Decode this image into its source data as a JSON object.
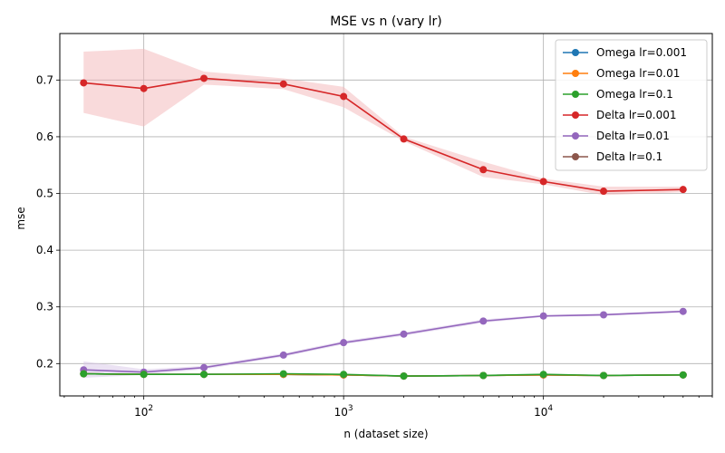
{
  "chart_data": {
    "type": "line",
    "title": "MSE vs n (vary lr)",
    "xlabel": "n (dataset size)",
    "ylabel": "mse",
    "xscale": "log",
    "xlim": [
      38,
      70000
    ],
    "ylim": [
      0.143,
      0.782
    ],
    "x": [
      50,
      100,
      200,
      500,
      1000,
      2000,
      5000,
      10000,
      20000,
      50000
    ],
    "x_ticks": [
      {
        "value": 100,
        "base": "10",
        "exp": "2"
      },
      {
        "value": 1000,
        "base": "10",
        "exp": "3"
      },
      {
        "value": 10000,
        "base": "10",
        "exp": "4"
      }
    ],
    "y_ticks": [
      {
        "value": 0.2,
        "label": "0.2"
      },
      {
        "value": 0.3,
        "label": "0.3"
      },
      {
        "value": 0.4,
        "label": "0.4"
      },
      {
        "value": 0.5,
        "label": "0.5"
      },
      {
        "value": 0.6,
        "label": "0.6"
      },
      {
        "value": 0.7,
        "label": "0.7"
      }
    ],
    "grid": true,
    "legend_position": "top-right",
    "series": [
      {
        "name": "Omega lr=0.001",
        "color": "#1f77b4",
        "values": [
          0.182,
          0.181,
          0.181,
          0.181,
          0.18,
          0.178,
          0.179,
          0.18,
          0.179,
          0.18
        ]
      },
      {
        "name": "Omega lr=0.01",
        "color": "#ff7f0e",
        "values": [
          0.182,
          0.181,
          0.181,
          0.181,
          0.18,
          0.178,
          0.179,
          0.18,
          0.179,
          0.18
        ]
      },
      {
        "name": "Omega lr=0.1",
        "color": "#2ca02c",
        "values": [
          0.182,
          0.181,
          0.181,
          0.182,
          0.181,
          0.178,
          0.179,
          0.181,
          0.179,
          0.18
        ]
      },
      {
        "name": "Delta lr=0.001",
        "color": "#d62728",
        "values": [
          0.695,
          0.685,
          0.703,
          0.693,
          0.671,
          0.596,
          0.542,
          0.521,
          0.504,
          0.507
        ],
        "band_upper": [
          0.75,
          0.755,
          0.715,
          0.703,
          0.688,
          0.6,
          0.556,
          0.526,
          0.512,
          0.512
        ],
        "band_lower": [
          0.642,
          0.618,
          0.692,
          0.684,
          0.652,
          0.592,
          0.529,
          0.516,
          0.497,
          0.502
        ],
        "band_color": "#f4b6b7"
      },
      {
        "name": "Delta lr=0.01",
        "color": "#9467bd",
        "values": [
          0.189,
          0.185,
          0.193,
          0.215,
          0.237,
          0.252,
          0.275,
          0.284,
          0.286,
          0.292
        ],
        "band_upper": [
          0.204,
          0.19,
          0.196,
          0.218,
          0.24,
          0.255,
          0.278,
          0.286,
          0.288,
          0.294
        ],
        "band_lower": [
          0.175,
          0.18,
          0.19,
          0.212,
          0.234,
          0.249,
          0.272,
          0.282,
          0.284,
          0.29
        ],
        "band_color": "#d7c5e8"
      },
      {
        "name": "Delta lr=0.1",
        "color": "#8c564b",
        "values": [
          0.182,
          0.181,
          0.181,
          0.181,
          0.18,
          0.178,
          0.179,
          0.18,
          0.179,
          0.18
        ]
      }
    ],
    "draw_order": [
      4,
      3,
      5,
      0,
      1,
      2
    ]
  }
}
